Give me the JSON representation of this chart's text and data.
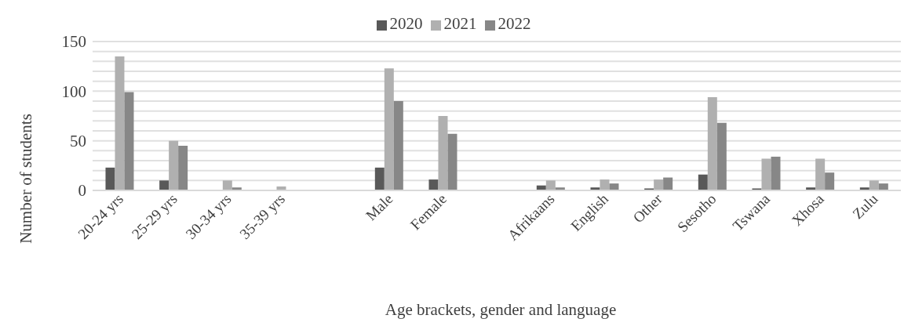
{
  "chart_data": {
    "type": "bar",
    "xlabel": "Age brackets, gender and language",
    "ylabel": "Number of students",
    "categories": [
      "20-24 yrs",
      "25-29 yrs",
      "30-34 yrs",
      "35-39 yrs",
      null,
      "Male",
      "Female",
      null,
      "Afrikaans",
      "English",
      "Other",
      "Sesotho",
      "Tswana",
      "Xhosa",
      "Zulu"
    ],
    "series": [
      {
        "name": "2020",
        "color": "#595959",
        "values": [
          23,
          10,
          0,
          0,
          null,
          23,
          11,
          null,
          5,
          3,
          2,
          16,
          2,
          3,
          3
        ]
      },
      {
        "name": "2021",
        "color": "#b0b0b0",
        "values": [
          135,
          50,
          10,
          4,
          null,
          123,
          75,
          null,
          10,
          11,
          11,
          94,
          32,
          32,
          10
        ]
      },
      {
        "name": "2022",
        "color": "#878787",
        "values": [
          99,
          45,
          3,
          0,
          null,
          90,
          57,
          null,
          3,
          7,
          13,
          68,
          34,
          18,
          7
        ]
      }
    ],
    "ylim": [
      0,
      150
    ],
    "yticks": [
      0,
      {
        "value": 10,
        "label": null
      },
      {
        "value": 20,
        "label": null
      },
      {
        "value": 30,
        "label": null
      },
      {
        "value": 40,
        "label": null
      },
      50,
      {
        "value": 60,
        "label": null
      },
      {
        "value": 70,
        "label": null
      },
      {
        "value": 80,
        "label": null
      },
      {
        "value": 90,
        "label": null
      },
      100,
      {
        "value": 110,
        "label": null
      },
      {
        "value": 120,
        "label": null
      },
      {
        "value": 130,
        "label": null
      },
      {
        "value": 140,
        "label": null
      },
      150
    ],
    "grid": "y",
    "legend": "top"
  }
}
